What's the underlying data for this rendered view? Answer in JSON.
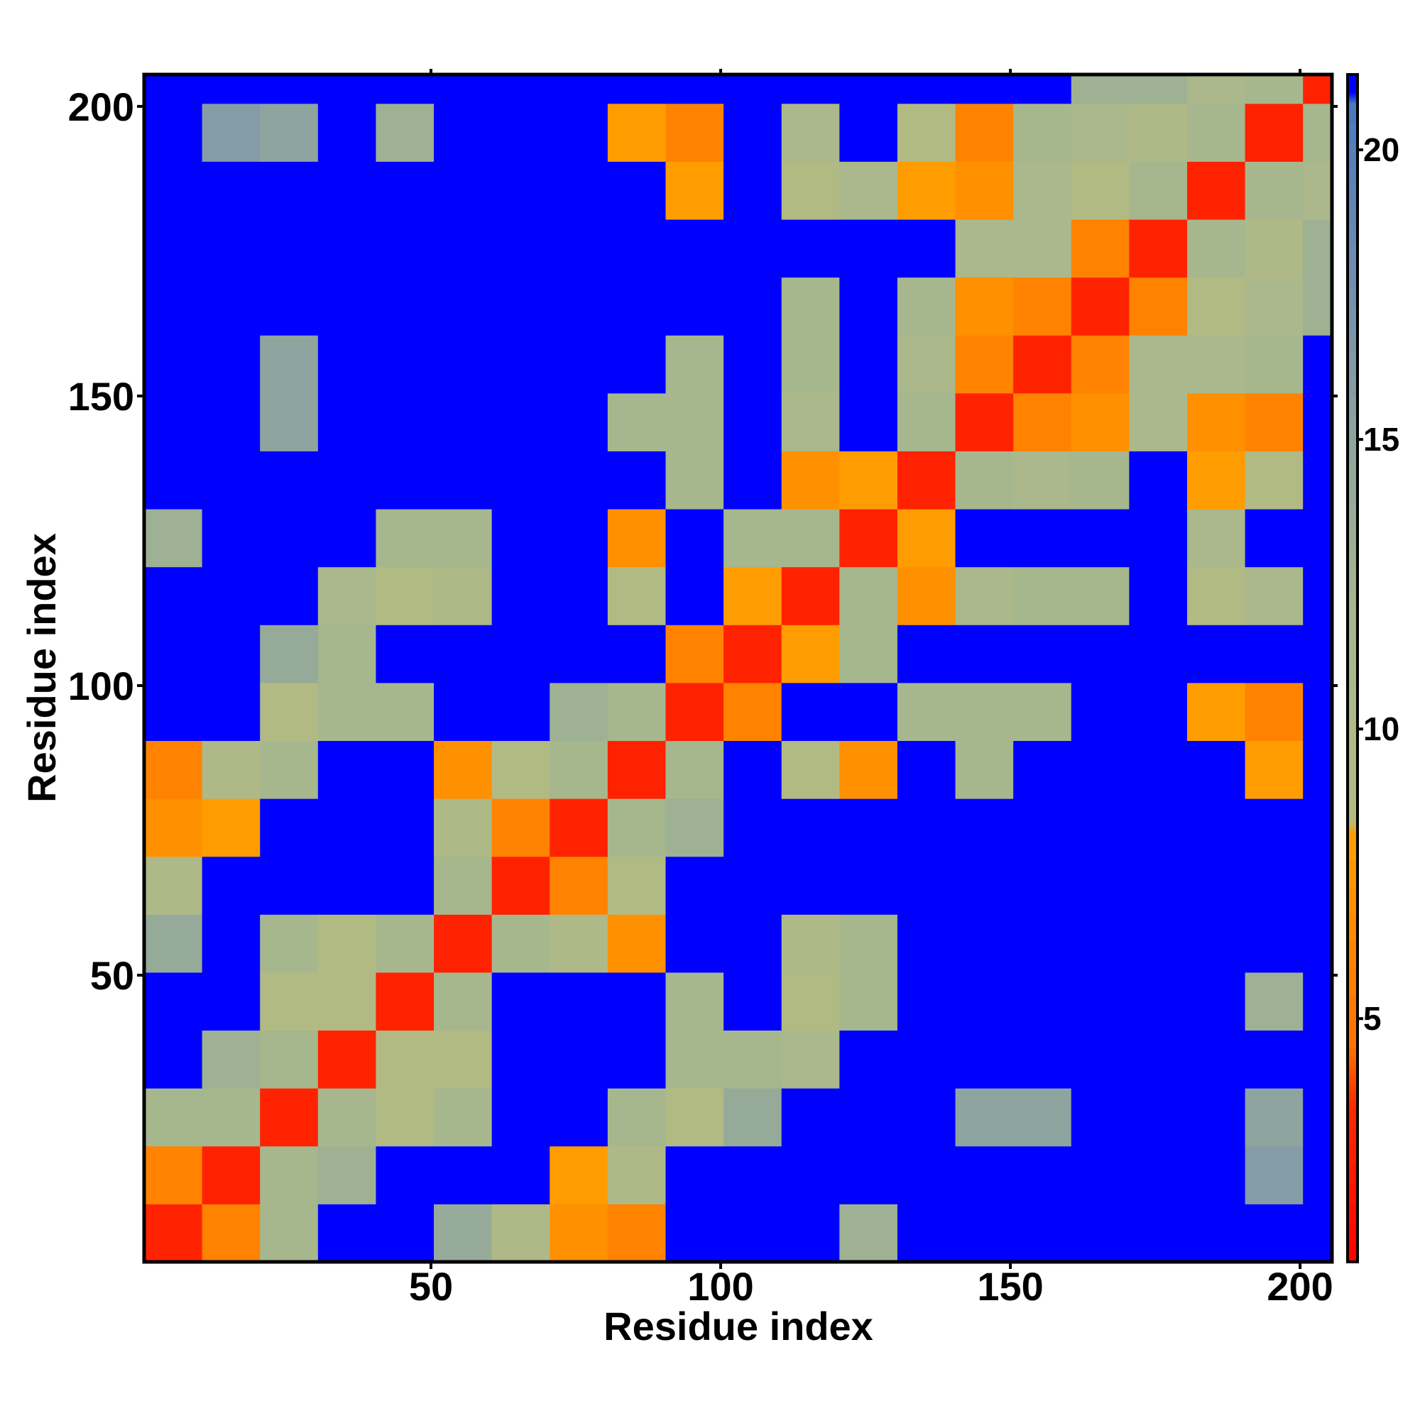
{
  "chart_data": {
    "type": "heatmap",
    "x_label": "Residue index",
    "y_label": "Residue index",
    "xlim": [
      0.5,
      205.5
    ],
    "ylim": [
      0.5,
      205.5
    ],
    "xticks": [
      50,
      100,
      150,
      200
    ],
    "yticks": [
      50,
      100,
      150,
      200
    ],
    "x_bins": [
      0.5,
      10.5,
      20.5,
      30.5,
      40.5,
      50.5,
      60.5,
      70.5,
      80.5,
      90.5,
      100.5,
      110.5,
      120.5,
      130.5,
      140.5,
      150.5,
      160.5,
      170.5,
      180.5,
      190.5,
      200.5,
      205.5
    ],
    "y_bins": [
      0.5,
      10.5,
      20.5,
      30.5,
      40.5,
      50.5,
      60.5,
      70.5,
      80.5,
      90.5,
      100.5,
      110.5,
      120.5,
      130.5,
      140.5,
      150.5,
      160.5,
      170.5,
      180.5,
      190.5,
      200.5,
      205.5
    ],
    "z": [
      [
        3,
        6,
        12,
        21,
        21,
        14,
        10,
        7,
        6,
        21,
        21,
        21,
        13,
        21,
        21,
        21,
        21,
        21,
        21,
        21,
        21
      ],
      [
        6,
        3,
        12,
        13,
        21,
        21,
        21,
        8,
        10,
        21,
        21,
        21,
        21,
        21,
        21,
        21,
        21,
        21,
        21,
        16,
        21
      ],
      [
        12,
        12,
        3,
        12,
        9,
        12,
        21,
        21,
        12,
        9,
        14,
        21,
        21,
        21,
        15,
        15,
        21,
        21,
        21,
        15,
        21
      ],
      [
        21,
        13,
        12,
        3,
        9,
        9,
        21,
        21,
        21,
        12,
        12,
        11,
        21,
        21,
        21,
        21,
        21,
        21,
        21,
        21,
        21
      ],
      [
        21,
        21,
        9,
        9,
        3,
        12,
        21,
        21,
        21,
        12,
        21,
        9,
        12,
        21,
        21,
        21,
        21,
        21,
        21,
        13,
        21
      ],
      [
        14,
        21,
        12,
        9,
        12,
        3,
        12,
        10,
        7,
        21,
        21,
        10,
        12,
        21,
        21,
        21,
        21,
        21,
        21,
        21,
        21
      ],
      [
        10,
        21,
        21,
        21,
        21,
        12,
        3,
        6,
        9,
        21,
        21,
        21,
        21,
        21,
        21,
        21,
        21,
        21,
        21,
        21,
        21
      ],
      [
        7,
        8,
        21,
        21,
        21,
        10,
        6,
        3,
        12,
        13,
        21,
        21,
        21,
        21,
        21,
        21,
        21,
        21,
        21,
        21,
        21
      ],
      [
        6,
        10,
        12,
        21,
        21,
        7,
        9,
        12,
        3,
        12,
        21,
        9,
        7,
        21,
        12,
        21,
        21,
        21,
        21,
        8,
        21
      ],
      [
        21,
        21,
        9,
        12,
        12,
        21,
        21,
        13,
        12,
        3,
        6,
        21,
        21,
        12,
        12,
        12,
        21,
        21,
        8,
        6,
        21
      ],
      [
        21,
        21,
        14,
        12,
        21,
        21,
        21,
        21,
        21,
        6,
        3,
        8,
        12,
        21,
        21,
        21,
        21,
        21,
        21,
        21,
        21
      ],
      [
        21,
        21,
        21,
        11,
        9,
        10,
        21,
        21,
        9,
        21,
        8,
        3,
        12,
        7,
        11,
        12,
        12,
        21,
        9,
        11,
        21
      ],
      [
        13,
        21,
        21,
        21,
        12,
        12,
        21,
        21,
        7,
        21,
        12,
        12,
        3,
        8,
        21,
        21,
        21,
        21,
        11,
        21,
        21
      ],
      [
        21,
        21,
        21,
        21,
        21,
        21,
        21,
        21,
        21,
        12,
        21,
        7,
        8,
        3,
        12,
        11,
        12,
        21,
        8,
        9,
        21
      ],
      [
        21,
        21,
        15,
        21,
        21,
        21,
        21,
        21,
        12,
        12,
        21,
        11,
        21,
        12,
        3,
        6,
        7,
        11,
        7,
        6,
        21
      ],
      [
        21,
        21,
        15,
        21,
        21,
        21,
        21,
        21,
        21,
        12,
        21,
        12,
        21,
        11,
        6,
        3,
        6,
        11,
        11,
        12,
        21
      ],
      [
        21,
        21,
        21,
        21,
        21,
        21,
        21,
        21,
        21,
        21,
        21,
        12,
        21,
        12,
        7,
        6,
        3,
        6,
        9,
        11,
        13
      ],
      [
        21,
        21,
        21,
        21,
        21,
        21,
        21,
        21,
        21,
        21,
        21,
        21,
        21,
        21,
        11,
        11,
        6,
        3,
        12,
        10,
        13
      ],
      [
        21,
        21,
        21,
        21,
        21,
        21,
        21,
        21,
        21,
        8,
        21,
        9,
        11,
        8,
        7,
        11,
        9,
        12,
        3,
        12,
        11
      ],
      [
        21,
        16,
        15,
        21,
        13,
        21,
        21,
        21,
        8,
        6,
        21,
        11,
        21,
        9,
        6,
        12,
        11,
        10,
        12,
        3,
        12
      ],
      [
        21,
        21,
        21,
        21,
        21,
        21,
        21,
        21,
        21,
        21,
        21,
        21,
        21,
        21,
        21,
        21,
        13,
        13,
        11,
        12,
        3
      ]
    ],
    "zlim": [
      0.8,
      21.3
    ],
    "zticks": [
      5,
      10,
      15,
      20
    ],
    "colorscale": [
      {
        "value": 0.8,
        "color": "#ff0000"
      },
      {
        "value": 3.5,
        "color": "#ff2a00"
      },
      {
        "value": 4.5,
        "color": "#ff7000"
      },
      {
        "value": 8.2,
        "color": "#ffa000"
      },
      {
        "value": 8.4,
        "color": "#b4bb82"
      },
      {
        "value": 12,
        "color": "#a6b78e"
      },
      {
        "value": 15,
        "color": "#8ea49e"
      },
      {
        "value": 18,
        "color": "#6f8db2"
      },
      {
        "value": 20.8,
        "color": "#4a78c0"
      },
      {
        "value": 21,
        "color": "#0000ff"
      },
      {
        "value": 21.3,
        "color": "#0000ff"
      }
    ]
  }
}
